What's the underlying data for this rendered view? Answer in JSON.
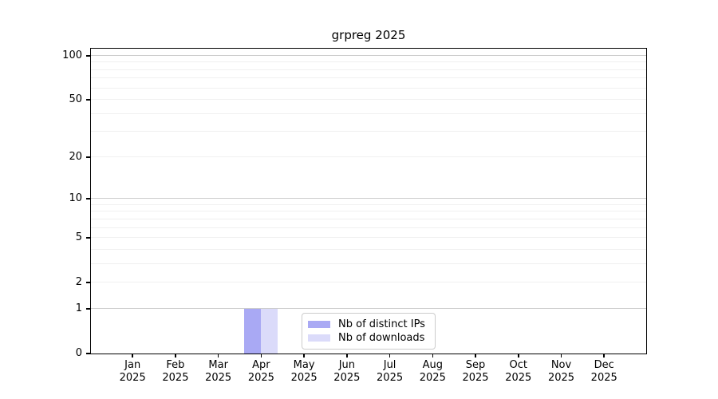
{
  "chart_data": {
    "type": "bar",
    "title": "grpreg 2025",
    "x_categories": [
      "Jan",
      "Feb",
      "Mar",
      "Apr",
      "May",
      "Jun",
      "Jul",
      "Aug",
      "Sep",
      "Oct",
      "Nov",
      "Dec"
    ],
    "x_year": "2025",
    "series": [
      {
        "name": "Nb of distinct IPs",
        "color": "#a9a9f4",
        "values": [
          0,
          0,
          0,
          1,
          0,
          0,
          0,
          0,
          0,
          0,
          0,
          0
        ]
      },
      {
        "name": "Nb of downloads",
        "color": "#dbdbfa",
        "values": [
          0,
          0,
          0,
          1,
          0,
          0,
          0,
          0,
          0,
          0,
          0,
          0
        ]
      }
    ],
    "y_scale": "log1p",
    "ylim": [
      0,
      112
    ],
    "y_ticks": [
      0,
      1,
      2,
      5,
      10,
      20,
      50,
      100
    ],
    "y_major_gridlines": [
      1,
      10,
      100
    ],
    "y_minor_gridlines": [
      2,
      3,
      4,
      5,
      6,
      7,
      8,
      9,
      20,
      30,
      40,
      50,
      60,
      70,
      80,
      90
    ],
    "grid": "horizontal",
    "legend_position": "lower center",
    "colors": {
      "major_grid": "#cccccc",
      "minor_grid": "#f0f0f0",
      "axis": "#000000",
      "legend_border": "#cccccc",
      "background": "#ffffff"
    }
  }
}
